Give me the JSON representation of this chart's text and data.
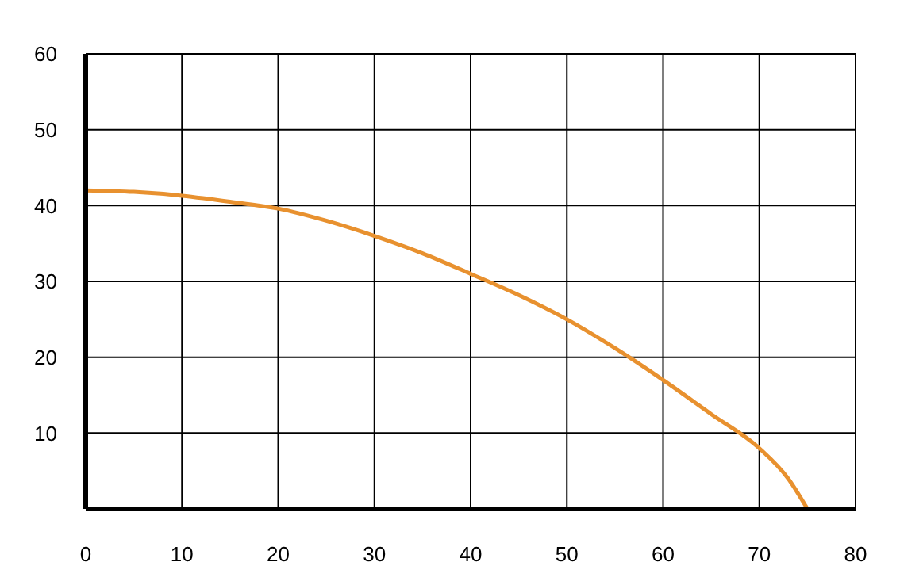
{
  "chart_data": {
    "type": "line",
    "x": [
      0,
      5,
      10,
      15,
      20,
      25,
      30,
      35,
      40,
      45,
      50,
      55,
      60,
      65,
      70,
      73,
      75
    ],
    "series": [
      {
        "color": "#e8912f",
        "values": [
          42,
          41.8,
          41.3,
          40.5,
          39.6,
          38,
          36,
          33.7,
          31,
          28.2,
          25,
          21.2,
          17,
          12.5,
          8,
          4,
          0
        ]
      }
    ],
    "xlim": [
      0,
      80
    ],
    "xticks": [
      0,
      10,
      20,
      30,
      40,
      50,
      60,
      70,
      80
    ],
    "ylim": [
      0,
      60
    ],
    "yticks": [
      10,
      20,
      30,
      40,
      50,
      60
    ],
    "grid": true,
    "marker": "none",
    "line_style": "solid"
  }
}
